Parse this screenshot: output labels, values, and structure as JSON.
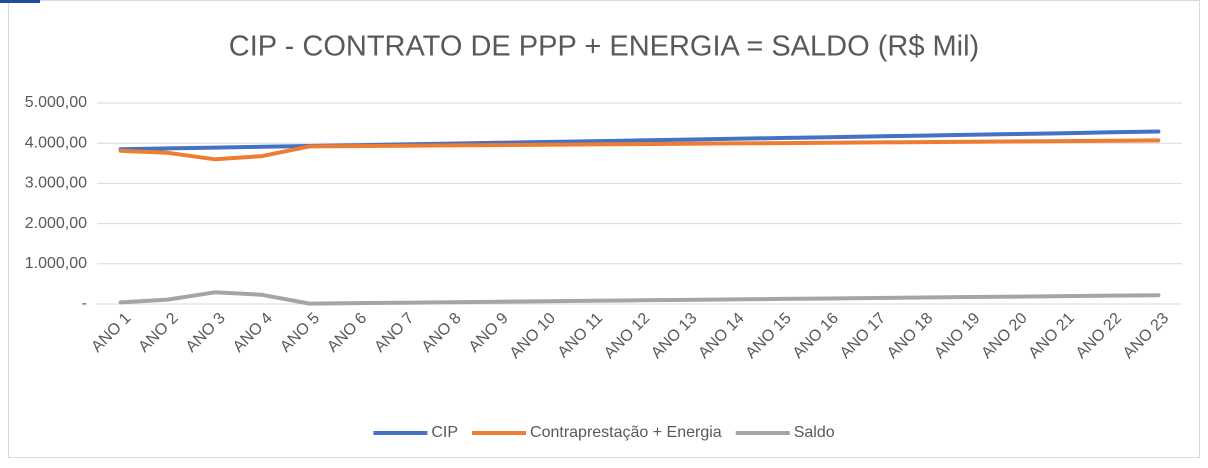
{
  "chart_data": {
    "type": "line",
    "title": "CIP - CONTRATO DE PPP + ENERGIA = SALDO (R$ Mil)",
    "categories": [
      "ANO 1",
      "ANO 2",
      "ANO 3",
      "ANO 4",
      "ANO 5",
      "ANO 6",
      "ANO 7",
      "ANO 8",
      "ANO 9",
      "ANO 10",
      "ANO 11",
      "ANO 12",
      "ANO 13",
      "ANO 14",
      "ANO 15",
      "ANO 16",
      "ANO 17",
      "ANO 18",
      "ANO 19",
      "ANO 20",
      "ANO 21",
      "ANO 22",
      "ANO 23"
    ],
    "series": [
      {
        "name": "CIP",
        "color": "#4472c4",
        "values": [
          3850,
          3870,
          3890,
          3910,
          3930,
          3950,
          3970,
          3990,
          4010,
          4030,
          4050,
          4070,
          4090,
          4110,
          4130,
          4150,
          4170,
          4190,
          4210,
          4230,
          4250,
          4270,
          4290
        ]
      },
      {
        "name": "Contraprestação + Energia",
        "color": "#ed7d31",
        "values": [
          3810,
          3760,
          3600,
          3680,
          3920,
          3928,
          3937,
          3945,
          3953,
          3962,
          3970,
          3978,
          3987,
          3995,
          4003,
          4012,
          4020,
          4028,
          4037,
          4045,
          4053,
          4062,
          4070
        ]
      },
      {
        "name": "Saldo",
        "color": "#a5a5a5",
        "values": [
          40,
          110,
          290,
          230,
          10,
          22,
          33,
          45,
          57,
          68,
          80,
          92,
          103,
          115,
          127,
          138,
          150,
          162,
          173,
          185,
          197,
          208,
          220
        ]
      }
    ],
    "ylim": [
      0,
      5000
    ],
    "yticks": [
      {
        "value": 0,
        "label": "-"
      },
      {
        "value": 1000,
        "label": "1.000,00"
      },
      {
        "value": 2000,
        "label": "2.000,00"
      },
      {
        "value": 3000,
        "label": "3.000,00"
      },
      {
        "value": 4000,
        "label": "4.000,00"
      },
      {
        "value": 5000,
        "label": "5.000,00"
      }
    ],
    "grid": true,
    "legend": "bottom"
  }
}
